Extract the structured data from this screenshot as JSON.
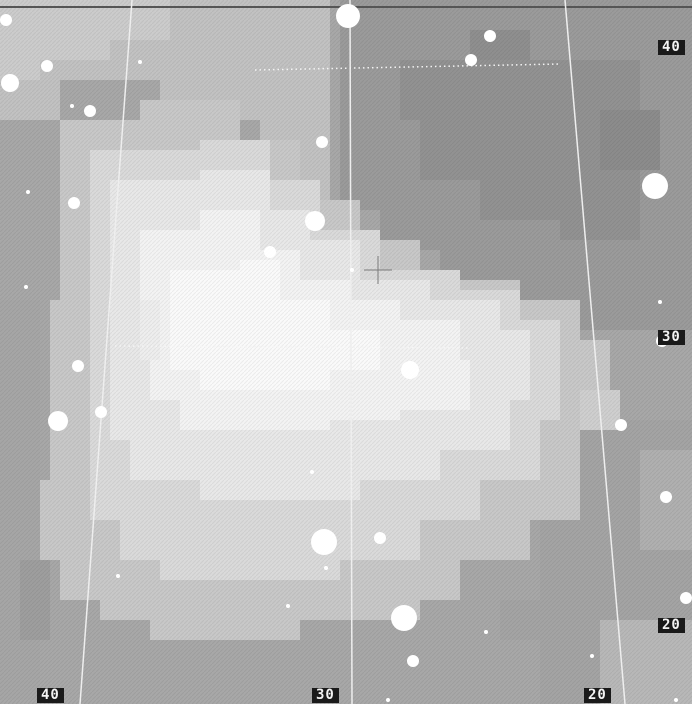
{
  "map": {
    "background_colors": {
      "dark": "#9a9a9a",
      "mid": "#b4b4b4",
      "light": "#d4d4d4",
      "bright": "#f0f0f0",
      "star": "#ffffff",
      "grid_line": "#ebebeb",
      "label_bg": "#1a1a1a",
      "label_text": "#f2f2f2"
    },
    "x_axis_labels": [
      "40",
      "30",
      "20"
    ],
    "y_axis_labels": [
      "40",
      "30",
      "20"
    ],
    "center_marker": "crosshair-icon"
  }
}
